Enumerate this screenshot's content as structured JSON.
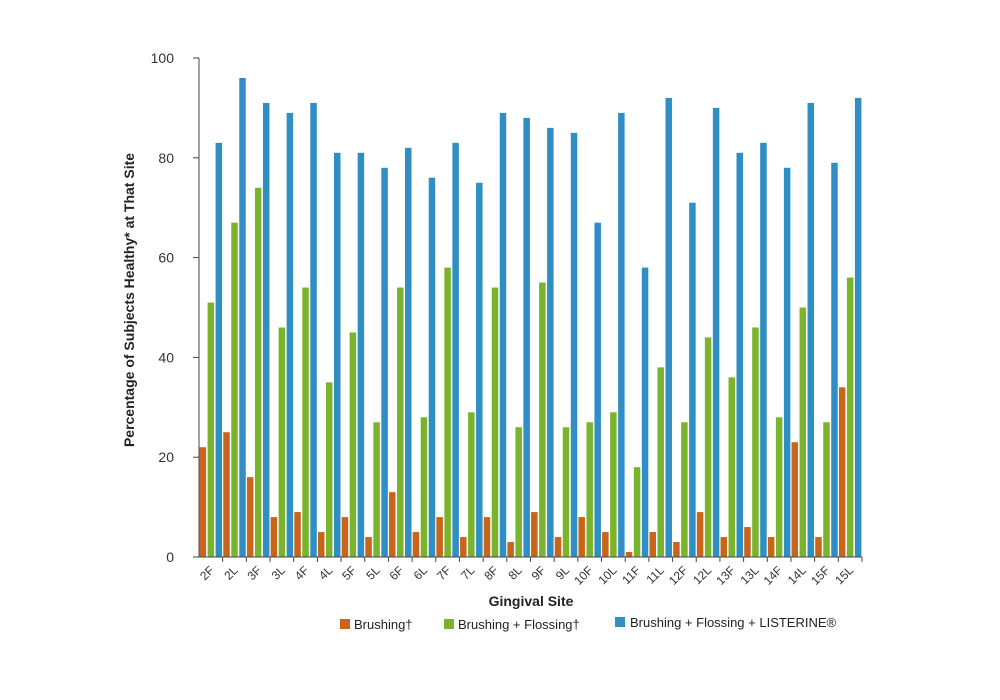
{
  "chart_data": {
    "type": "bar",
    "title": "",
    "xlabel": "Gingival Site",
    "ylabel": "Percentage of Subjects Healthy* at That Site",
    "ylim": [
      0,
      100
    ],
    "yticks": [
      "0",
      "20",
      "40",
      "60",
      "80",
      "100"
    ],
    "grid": false,
    "legend_position": "bottom",
    "categories": [
      "2F",
      "2L",
      "3F",
      "3L",
      "4F",
      "4L",
      "5F",
      "5L",
      "6F",
      "6L",
      "7F",
      "7L",
      "8F",
      "8L",
      "9F",
      "9L",
      "10F",
      "10L",
      "11F",
      "11L",
      "12F",
      "12L",
      "13F",
      "13L",
      "14F",
      "14L",
      "15F",
      "15L"
    ],
    "series": [
      {
        "name": "Brushing†",
        "color": "#c8651b",
        "values": [
          22,
          25,
          16,
          8,
          9,
          5,
          8,
          4,
          13,
          5,
          8,
          4,
          8,
          3,
          9,
          4,
          8,
          5,
          1,
          5,
          3,
          9,
          4,
          6,
          4,
          23,
          4,
          34
        ]
      },
      {
        "name": "Brushing + Flossing†",
        "color": "#7ab42c",
        "values": [
          51,
          67,
          74,
          46,
          54,
          35,
          45,
          27,
          54,
          28,
          58,
          29,
          54,
          26,
          55,
          26,
          27,
          29,
          18,
          38,
          27,
          44,
          36,
          46,
          28,
          50,
          27,
          56
        ]
      },
      {
        "name": "Brushing + Flossing + LISTERINE®",
        "color": "#2f8fc4",
        "values": [
          83,
          96,
          91,
          89,
          91,
          81,
          81,
          78,
          82,
          76,
          83,
          75,
          89,
          88,
          86,
          85,
          67,
          89,
          58,
          92,
          71,
          90,
          81,
          83,
          78,
          91,
          79,
          92
        ]
      }
    ]
  }
}
